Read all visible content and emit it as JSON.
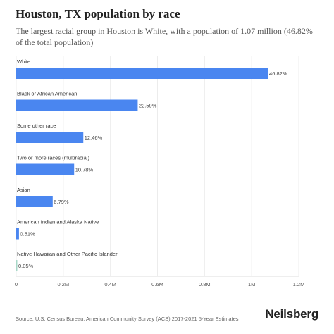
{
  "header": {
    "title": "Houston, TX population by race",
    "subtitle": "The largest racial group in Houston is White, with a population of 1.07 million (46.82% of the total population)"
  },
  "chart_data": {
    "type": "bar",
    "orientation": "horizontal",
    "categories": [
      "White",
      "Black or African American",
      "Some other race",
      "Two or more races (multiracial)",
      "Asian",
      "American Indian and Alaska Native",
      "Native Hawaiian and Other Pacific Islander"
    ],
    "values": [
      1070000,
      516000,
      285000,
      246000,
      155000,
      11700,
      1140
    ],
    "data_labels": [
      "46.82%",
      "22.59%",
      "12.46%",
      "10.78%",
      "6.79%",
      "0.51%",
      "0.05%"
    ],
    "x_ticks": [
      0,
      200000,
      400000,
      600000,
      800000,
      1000000,
      1200000
    ],
    "x_tick_labels": [
      "0",
      "0.2M",
      "0.4M",
      "0.6M",
      "0.8M",
      "1M",
      "1.2M"
    ],
    "xlim": [
      0,
      1200000
    ],
    "grid": true,
    "legend": "none",
    "bar_color": "#4a86f0",
    "small_bar_color": "#a8d8c8"
  },
  "footer": {
    "source": "Source: U.S. Census Bureau, American Community Survey (ACS) 2017-2021 5-Year Estimates",
    "brand": "Neilsberg"
  }
}
